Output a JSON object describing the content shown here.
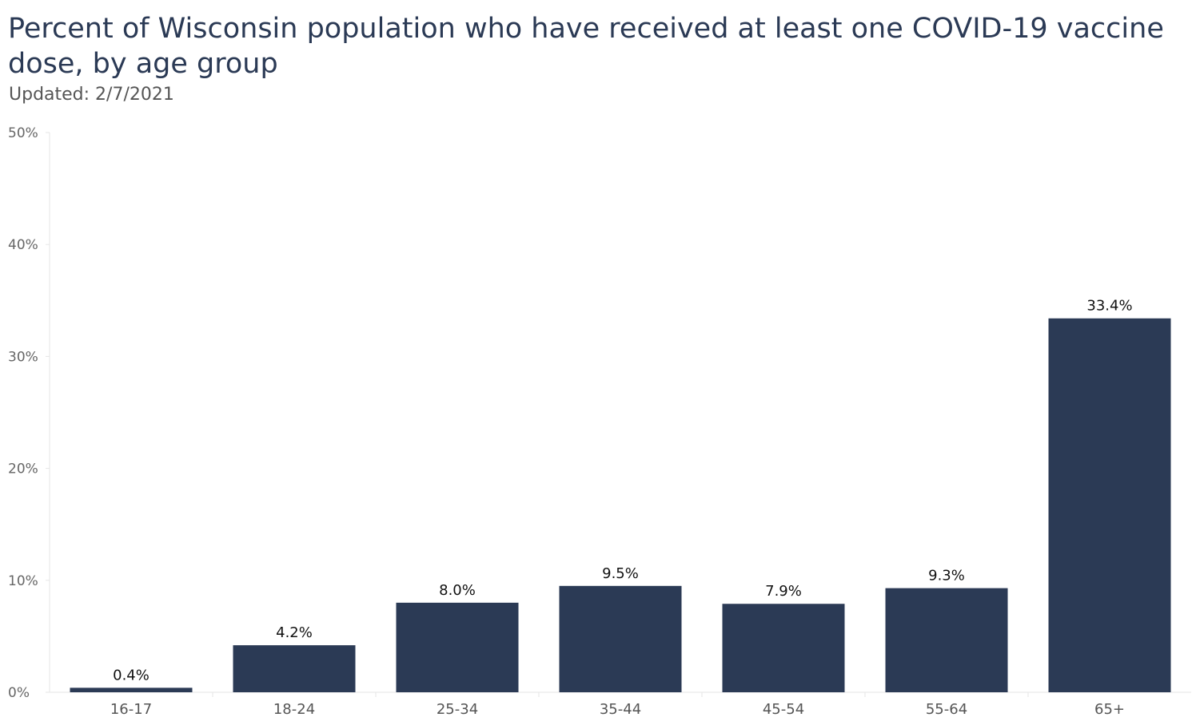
{
  "chart_data": {
    "type": "bar",
    "title": "Percent of Wisconsin population who have received at least one COVID-19 vaccine dose, by age group",
    "subtitle": "Updated: 2/7/2021",
    "categories": [
      "16-17",
      "18-24",
      "25-34",
      "35-44",
      "45-54",
      "55-64",
      "65+"
    ],
    "values": [
      0.4,
      4.2,
      8.0,
      9.5,
      7.9,
      9.3,
      33.4
    ],
    "data_labels": [
      "0.4%",
      "4.2%",
      "8.0%",
      "9.5%",
      "7.9%",
      "9.3%",
      "33.4%"
    ],
    "y_ticks": [
      0,
      10,
      20,
      30,
      40,
      50
    ],
    "y_tick_labels": [
      "0%",
      "10%",
      "20%",
      "30%",
      "40%",
      "50%"
    ],
    "ylim": [
      0,
      50
    ],
    "xlabel": "",
    "ylabel": "",
    "grid": false,
    "bar_color": "#2b3a55"
  }
}
